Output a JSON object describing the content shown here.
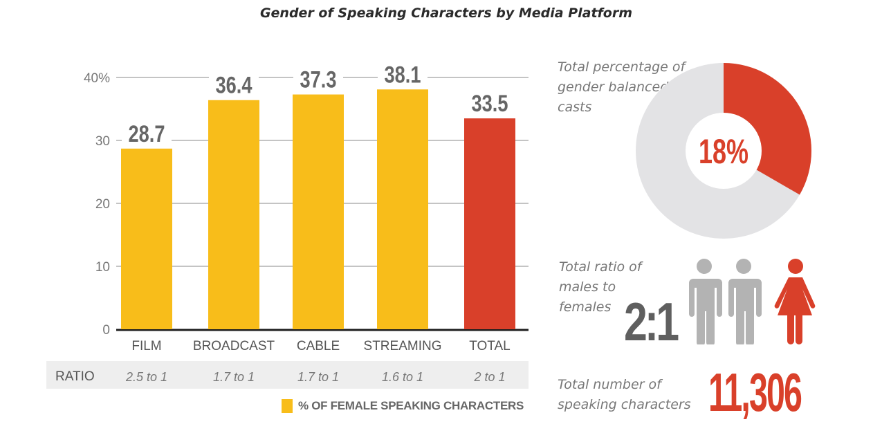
{
  "title": "Gender of Speaking Characters by Media Platform",
  "colors": {
    "platform_bar": "#f8bd1a",
    "total_bar": "#d9402a",
    "value_label": "#666666",
    "grid": "#888888",
    "ratio_band": "#eeeeee",
    "donut_bg": "#e3e3e5",
    "male_icon": "#b3b3b3",
    "female_icon": "#d9402a"
  },
  "chart_data": [
    {
      "type": "bar",
      "title": "Gender of Speaking Characters by Media Platform",
      "categories": [
        "FILM",
        "BROADCAST",
        "CABLE",
        "STREAMING",
        "TOTAL"
      ],
      "values": [
        28.7,
        36.4,
        37.3,
        38.1,
        33.5
      ],
      "value_labels": [
        "28.7",
        "36.4",
        "37.3",
        "38.1",
        "33.5"
      ],
      "highlight": [
        false,
        false,
        false,
        false,
        true
      ],
      "xlabel": "",
      "ylabel": "",
      "ylim": [
        0,
        40
      ],
      "yticks": [
        0,
        10,
        20,
        30,
        40
      ],
      "ytick_labels": [
        "0",
        "10",
        "20",
        "30",
        "40%"
      ],
      "grid": true,
      "legend": {
        "label": "% OF FEMALE SPEAKING CHARACTERS",
        "placement": "bottom-right"
      },
      "ratio_row": {
        "label": "RATIO",
        "values": [
          "2.5 to 1",
          "1.7 to 1",
          "1.7 to 1",
          "1.6 to 1",
          "2 to 1"
        ]
      }
    },
    {
      "type": "pie",
      "title": "Total percentage of gender balanced casts",
      "values": [
        18,
        82
      ],
      "labels": [
        "gender balanced",
        "not balanced"
      ],
      "center_label": "18%",
      "donut": true
    }
  ],
  "donut_caption": "Total percentage of gender balanced casts",
  "ratio": {
    "caption": "Total ratio of males to females",
    "value": "2:1",
    "icons": [
      "male-figure-icon",
      "male-figure-icon",
      "female-figure-icon"
    ]
  },
  "count": {
    "caption": "Total number of speaking characters",
    "value": "11,306"
  }
}
